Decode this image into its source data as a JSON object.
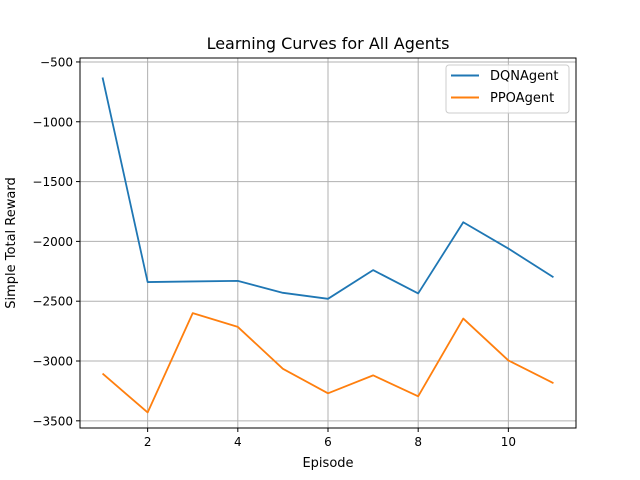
{
  "chart_data": {
    "type": "line",
    "title": "Learning Curves for All Agents",
    "xlabel": "Episode",
    "ylabel": "Simple Total Reward",
    "x": [
      1,
      2,
      3,
      4,
      5,
      6,
      7,
      8,
      9,
      10,
      11
    ],
    "xlim": [
      0.5,
      11.5
    ],
    "ylim": [
      -3560,
      -467
    ],
    "xticks": [
      2,
      4,
      6,
      8,
      10
    ],
    "yticks": [
      -500,
      -1000,
      -1500,
      -2000,
      -2500,
      -3000,
      -3500
    ],
    "xtick_labels": [
      "2",
      "4",
      "6",
      "8",
      "10"
    ],
    "ytick_labels": [
      "−500",
      "−1000",
      "−1500",
      "−2000",
      "−2500",
      "−3000",
      "−3500"
    ],
    "grid": true,
    "legend_position": "top-right",
    "series": [
      {
        "name": "DQNAgent",
        "color": "#1f77b4",
        "values": [
          -630,
          -2340,
          -2335,
          -2330,
          -2430,
          -2480,
          -2240,
          -2435,
          -1840,
          -2060,
          -2300
        ]
      },
      {
        "name": "PPOAgent",
        "color": "#ff7f0e",
        "values": [
          -3105,
          -3430,
          -2600,
          -2715,
          -3065,
          -3270,
          -3120,
          -3295,
          -2645,
          -2995,
          -3185
        ]
      }
    ]
  }
}
